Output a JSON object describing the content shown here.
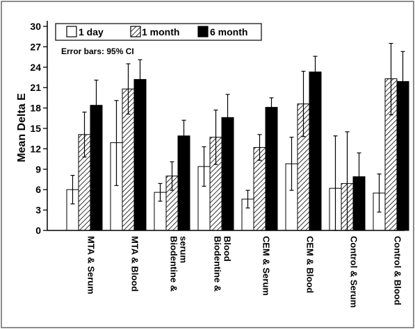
{
  "chart_data": {
    "type": "bar",
    "title": "",
    "xlabel": "",
    "ylabel": "Mean Delta E",
    "ylim": [
      0,
      30
    ],
    "yticks": [
      0,
      3,
      6,
      9,
      12,
      15,
      18,
      21,
      24,
      27,
      30
    ],
    "categories": [
      "MTA & Serum",
      "MTA & Blood",
      "Biodentine & serum",
      "Biodentine & Blood",
      "CEM & Serum",
      "CEM & Blood",
      "Control & Serum",
      "Control & Blood"
    ],
    "note": "Error bars: 95% CI",
    "legend_position": "top-left",
    "series": [
      {
        "name": "1 day",
        "pattern": "white",
        "values": [
          6.0,
          12.9,
          5.6,
          9.4,
          4.6,
          9.8,
          6.2,
          5.5
        ],
        "ci_low": [
          3.9,
          6.6,
          4.3,
          6.5,
          3.3,
          5.9,
          0.0,
          2.7
        ],
        "ci_high": [
          8.1,
          19.1,
          6.9,
          12.3,
          5.9,
          13.7,
          13.9,
          8.3
        ]
      },
      {
        "name": "1 month",
        "pattern": "hatched",
        "values": [
          14.1,
          20.8,
          8.0,
          13.7,
          12.2,
          18.6,
          6.9,
          22.3
        ],
        "ci_low": [
          10.8,
          17.1,
          5.9,
          9.7,
          10.3,
          13.8,
          0.0,
          17.0
        ],
        "ci_high": [
          17.4,
          24.5,
          10.1,
          17.7,
          14.1,
          23.4,
          14.5,
          27.5
        ]
      },
      {
        "name": "6 month",
        "pattern": "black",
        "values": [
          18.4,
          22.2,
          13.9,
          16.6,
          18.1,
          23.3,
          7.9,
          21.9
        ],
        "ci_low": [
          14.7,
          19.3,
          11.6,
          13.2,
          16.7,
          21.0,
          4.3,
          17.4
        ],
        "ci_high": [
          22.1,
          25.1,
          16.2,
          20.0,
          19.5,
          25.6,
          11.4,
          26.3
        ]
      }
    ],
    "colors": {
      "fill_white": "#ffffff",
      "fill_black": "#000000",
      "stroke": "#000000"
    }
  }
}
